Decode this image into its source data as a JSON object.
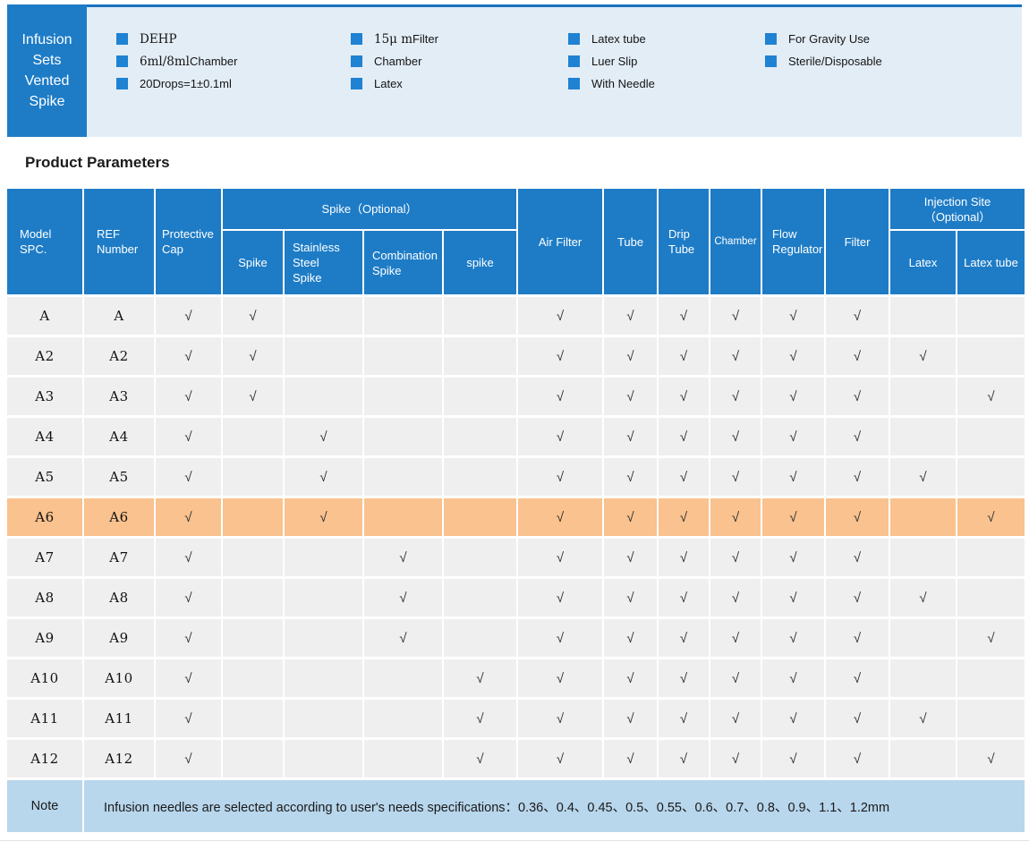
{
  "colors": {
    "primary": "#1e7cc6",
    "topline": "#1872c0",
    "banner_bg": "#e3edf6",
    "bullet": "#1f82d2",
    "row_bg": "#efefef",
    "highlight": "#f9c28e",
    "note_bg": "#b8d6ec",
    "check": "#2f2f2f"
  },
  "banner": {
    "title_lines": [
      "Infusion",
      "Sets",
      "Vented",
      "Spike"
    ],
    "features": [
      [
        [
          {
            "t": "DEHP",
            "f": "serif"
          }
        ],
        [
          {
            "t": "6ml/8ml",
            "f": "serif"
          },
          {
            "t": " Chamber",
            "f": "sans"
          }
        ],
        [
          {
            "t": "20Drops=1±0.1ml",
            "f": "sans"
          }
        ]
      ],
      [
        [
          {
            "t": "15μ m",
            "f": "serif"
          },
          {
            "t": " Filter",
            "f": "sans"
          }
        ],
        [
          {
            "t": "Chamber",
            "f": "sans"
          }
        ],
        [
          {
            "t": "Latex",
            "f": "sans"
          }
        ]
      ],
      [
        [
          {
            "t": "Latex tube",
            "f": "sans"
          }
        ],
        [
          {
            "t": "Luer Slip",
            "f": "sans"
          }
        ],
        [
          {
            "t": "With Needle",
            "f": "sans"
          }
        ]
      ],
      [
        [
          {
            "t": "For Gravity Use",
            "f": "sans"
          }
        ],
        [
          {
            "t": "Sterile/Disposable",
            "f": "sans"
          }
        ]
      ]
    ]
  },
  "section_title": "Product Parameters",
  "table": {
    "group_spike_label": "Spike（Optional）",
    "group_injection_label": "Injection Site（Optional）",
    "columns": {
      "model": "Model SPC.",
      "ref": "REF Number",
      "cap": "Protective Cap",
      "spike": "Spike",
      "stainless": "Stainless Steel Spike",
      "combination": "Combination Spike",
      "spike2": "spike",
      "air": "Air Filter",
      "tube": "Tube",
      "drip": "Drip Tube",
      "chamber": "Chamber",
      "flow": "Flow Regulator",
      "filter": "Filter",
      "latex": "Latex",
      "latex_tube": "Latex tube"
    },
    "check_glyph": "√",
    "rows": [
      {
        "model": "A",
        "ref": "A",
        "highlight": false,
        "checks": {
          "cap": 1,
          "spike": 1,
          "air": 1,
          "tube": 1,
          "drip": 1,
          "chamber": 1,
          "flow": 1,
          "filter": 1
        }
      },
      {
        "model": "A2",
        "ref": "A2",
        "highlight": false,
        "checks": {
          "cap": 1,
          "spike": 1,
          "air": 1,
          "tube": 1,
          "drip": 1,
          "chamber": 1,
          "flow": 1,
          "filter": 1,
          "latex": 1
        }
      },
      {
        "model": "A3",
        "ref": "A3",
        "highlight": false,
        "checks": {
          "cap": 1,
          "spike": 1,
          "air": 1,
          "tube": 1,
          "drip": 1,
          "chamber": 1,
          "flow": 1,
          "filter": 1,
          "latex_tube": 1
        }
      },
      {
        "model": "A4",
        "ref": "A4",
        "highlight": false,
        "checks": {
          "cap": 1,
          "stainless": 1,
          "air": 1,
          "tube": 1,
          "drip": 1,
          "chamber": 1,
          "flow": 1,
          "filter": 1
        }
      },
      {
        "model": "A5",
        "ref": "A5",
        "highlight": false,
        "checks": {
          "cap": 1,
          "stainless": 1,
          "air": 1,
          "tube": 1,
          "drip": 1,
          "chamber": 1,
          "flow": 1,
          "filter": 1,
          "latex": 1
        }
      },
      {
        "model": "A6",
        "ref": "A6",
        "highlight": true,
        "checks": {
          "cap": 1,
          "stainless": 1,
          "air": 1,
          "tube": 1,
          "drip": 1,
          "chamber": 1,
          "flow": 1,
          "filter": 1,
          "latex_tube": 1
        }
      },
      {
        "model": "A7",
        "ref": "A7",
        "highlight": false,
        "checks": {
          "cap": 1,
          "combination": 1,
          "air": 1,
          "tube": 1,
          "drip": 1,
          "chamber": 1,
          "flow": 1,
          "filter": 1
        }
      },
      {
        "model": "A8",
        "ref": "A8",
        "highlight": false,
        "checks": {
          "cap": 1,
          "combination": 1,
          "air": 1,
          "tube": 1,
          "drip": 1,
          "chamber": 1,
          "flow": 1,
          "filter": 1,
          "latex": 1
        }
      },
      {
        "model": "A9",
        "ref": "A9",
        "highlight": false,
        "checks": {
          "cap": 1,
          "combination": 1,
          "air": 1,
          "tube": 1,
          "drip": 1,
          "chamber": 1,
          "flow": 1,
          "filter": 1,
          "latex_tube": 1
        }
      },
      {
        "model": "A10",
        "ref": "A10",
        "highlight": false,
        "checks": {
          "cap": 1,
          "spike2": 1,
          "air": 1,
          "tube": 1,
          "drip": 1,
          "chamber": 1,
          "flow": 1,
          "filter": 1
        }
      },
      {
        "model": "A11",
        "ref": "A11",
        "highlight": false,
        "checks": {
          "cap": 1,
          "spike2": 1,
          "air": 1,
          "tube": 1,
          "drip": 1,
          "chamber": 1,
          "flow": 1,
          "filter": 1,
          "latex": 1
        }
      },
      {
        "model": "A12",
        "ref": "A12",
        "highlight": false,
        "checks": {
          "cap": 1,
          "spike2": 1,
          "air": 1,
          "tube": 1,
          "drip": 1,
          "chamber": 1,
          "flow": 1,
          "filter": 1,
          "latex_tube": 1
        }
      }
    ],
    "note_label": "Note",
    "note_text": "Infusion needles are selected according to user's needs specifications：0.36、0.4、0.45、0.5、0.55、0.6、0.7、0.8、0.9、1.1、1.2mm"
  }
}
